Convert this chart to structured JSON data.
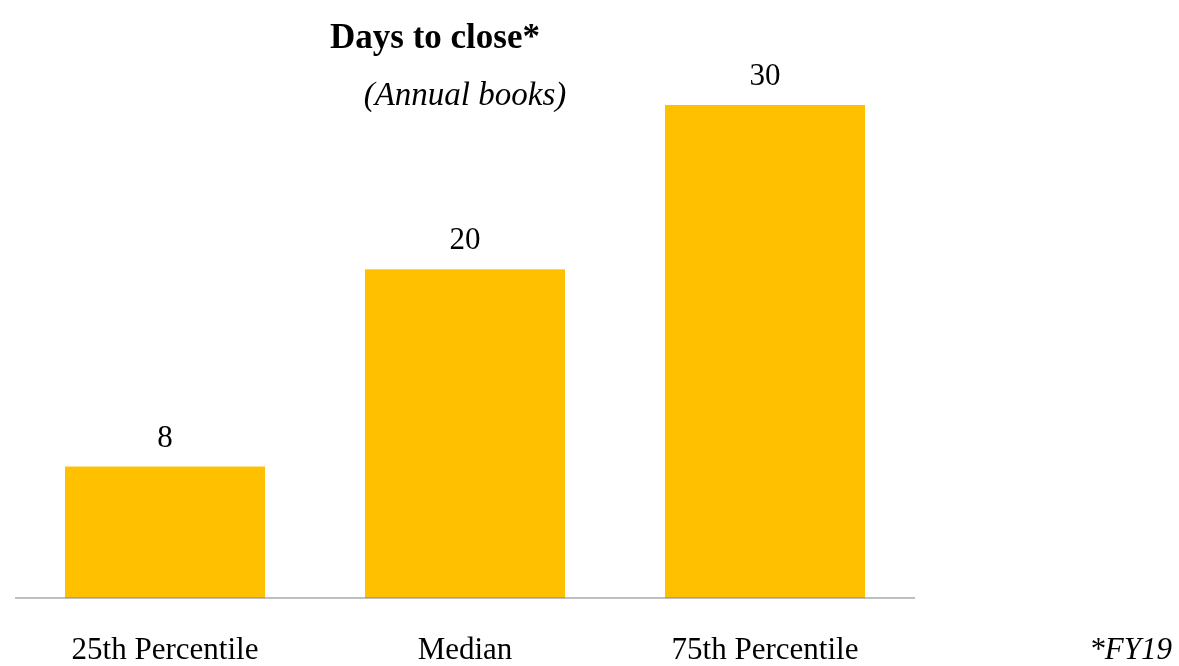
{
  "chart_data": {
    "type": "bar",
    "title": "Days to close*",
    "subtitle": "(Annual books)",
    "categories": [
      "25th Percentile",
      "Median",
      "75th Percentile"
    ],
    "values": [
      8,
      20,
      30
    ],
    "color": "#ffc000",
    "data_labels": true,
    "tick_labels": "x",
    "annotations": [
      "*FY19"
    ]
  }
}
